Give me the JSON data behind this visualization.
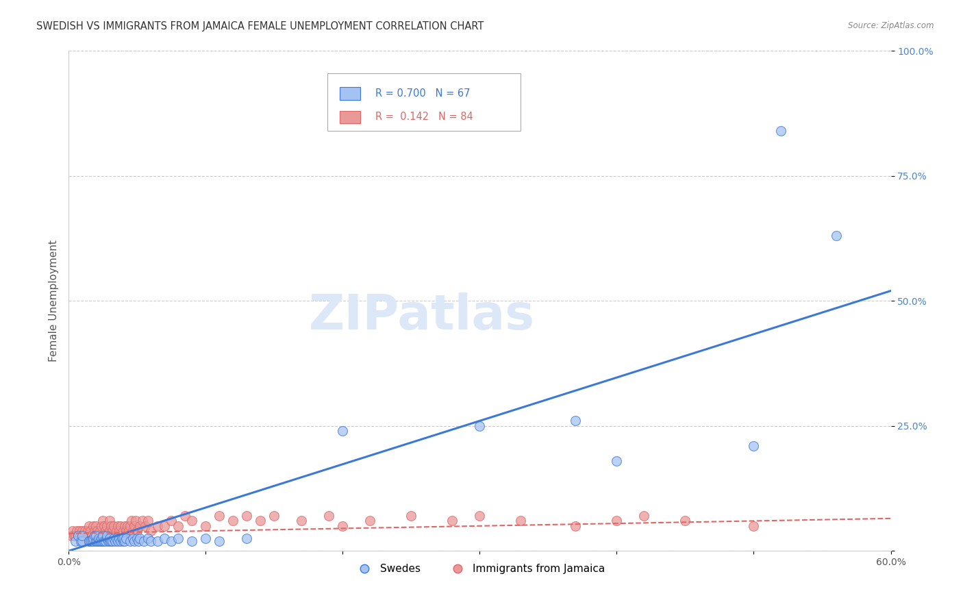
{
  "title": "SWEDISH VS IMMIGRANTS FROM JAMAICA FEMALE UNEMPLOYMENT CORRELATION CHART",
  "source": "Source: ZipAtlas.com",
  "ylabel": "Female Unemployment",
  "xlim": [
    0.0,
    0.6
  ],
  "ylim": [
    0.0,
    1.0
  ],
  "yticks": [
    0.0,
    0.25,
    0.5,
    0.75,
    1.0
  ],
  "yticklabels": [
    "",
    "25.0%",
    "50.0%",
    "75.0%",
    "100.0%"
  ],
  "xtick_left_label": "0.0%",
  "xtick_right_label": "60.0%",
  "legend_label1": "Swedes",
  "legend_label2": "Immigrants from Jamaica",
  "R1": 0.7,
  "N1": 67,
  "R2": 0.142,
  "N2": 84,
  "color_blue": "#a4c2f4",
  "color_pink": "#ea9999",
  "line_color_blue": "#3c78d8",
  "line_color_pink": "#e06666",
  "watermark_text": "ZIPatlas",
  "swedes_x": [
    0.005,
    0.007,
    0.009,
    0.01,
    0.01,
    0.015,
    0.015,
    0.016,
    0.017,
    0.018,
    0.018,
    0.019,
    0.02,
    0.02,
    0.02,
    0.021,
    0.022,
    0.022,
    0.023,
    0.024,
    0.024,
    0.025,
    0.025,
    0.026,
    0.027,
    0.028,
    0.028,
    0.029,
    0.03,
    0.03,
    0.031,
    0.032,
    0.033,
    0.034,
    0.035,
    0.036,
    0.037,
    0.038,
    0.039,
    0.04,
    0.04,
    0.041,
    0.042,
    0.045,
    0.047,
    0.048,
    0.05,
    0.051,
    0.052,
    0.055,
    0.058,
    0.06,
    0.065,
    0.07,
    0.075,
    0.08,
    0.09,
    0.1,
    0.11,
    0.13,
    0.2,
    0.3,
    0.37,
    0.4,
    0.5,
    0.52,
    0.56
  ],
  "swedes_y": [
    0.02,
    0.03,
    0.02,
    0.02,
    0.03,
    0.02,
    0.02,
    0.02,
    0.02,
    0.02,
    0.025,
    0.03,
    0.02,
    0.02,
    0.03,
    0.02,
    0.02,
    0.025,
    0.02,
    0.02,
    0.025,
    0.02,
    0.03,
    0.02,
    0.02,
    0.025,
    0.03,
    0.02,
    0.02,
    0.025,
    0.02,
    0.02,
    0.025,
    0.02,
    0.025,
    0.02,
    0.025,
    0.02,
    0.025,
    0.02,
    0.025,
    0.02,
    0.025,
    0.02,
    0.025,
    0.02,
    0.025,
    0.02,
    0.025,
    0.02,
    0.025,
    0.02,
    0.02,
    0.025,
    0.02,
    0.025,
    0.02,
    0.025,
    0.02,
    0.025,
    0.24,
    0.25,
    0.26,
    0.18,
    0.21,
    0.84,
    0.63
  ],
  "jamaica_x": [
    0.002,
    0.003,
    0.004,
    0.005,
    0.006,
    0.007,
    0.008,
    0.009,
    0.01,
    0.01,
    0.011,
    0.012,
    0.013,
    0.014,
    0.015,
    0.015,
    0.016,
    0.017,
    0.018,
    0.019,
    0.02,
    0.02,
    0.021,
    0.022,
    0.023,
    0.024,
    0.025,
    0.025,
    0.026,
    0.027,
    0.028,
    0.029,
    0.03,
    0.03,
    0.031,
    0.032,
    0.033,
    0.034,
    0.035,
    0.036,
    0.037,
    0.038,
    0.039,
    0.04,
    0.041,
    0.042,
    0.043,
    0.044,
    0.045,
    0.046,
    0.047,
    0.048,
    0.049,
    0.05,
    0.052,
    0.054,
    0.056,
    0.058,
    0.06,
    0.065,
    0.07,
    0.075,
    0.08,
    0.085,
    0.09,
    0.1,
    0.11,
    0.12,
    0.13,
    0.14,
    0.15,
    0.17,
    0.19,
    0.2,
    0.22,
    0.25,
    0.28,
    0.3,
    0.33,
    0.37,
    0.4,
    0.42,
    0.45,
    0.5
  ],
  "jamaica_y": [
    0.03,
    0.04,
    0.03,
    0.03,
    0.04,
    0.03,
    0.04,
    0.03,
    0.03,
    0.04,
    0.03,
    0.04,
    0.03,
    0.04,
    0.05,
    0.03,
    0.04,
    0.03,
    0.05,
    0.04,
    0.03,
    0.05,
    0.04,
    0.03,
    0.04,
    0.05,
    0.03,
    0.06,
    0.05,
    0.04,
    0.05,
    0.03,
    0.04,
    0.06,
    0.05,
    0.04,
    0.05,
    0.03,
    0.04,
    0.05,
    0.04,
    0.05,
    0.03,
    0.04,
    0.05,
    0.04,
    0.05,
    0.04,
    0.05,
    0.06,
    0.04,
    0.05,
    0.06,
    0.04,
    0.05,
    0.06,
    0.05,
    0.06,
    0.04,
    0.05,
    0.05,
    0.06,
    0.05,
    0.07,
    0.06,
    0.05,
    0.07,
    0.06,
    0.07,
    0.06,
    0.07,
    0.06,
    0.07,
    0.05,
    0.06,
    0.07,
    0.06,
    0.07,
    0.06,
    0.05,
    0.06,
    0.07,
    0.06,
    0.05
  ],
  "blue_line_x": [
    0.0,
    0.6
  ],
  "blue_line_y": [
    0.0,
    0.52
  ],
  "pink_line_x": [
    0.0,
    0.6
  ],
  "pink_line_y": [
    0.035,
    0.065
  ]
}
